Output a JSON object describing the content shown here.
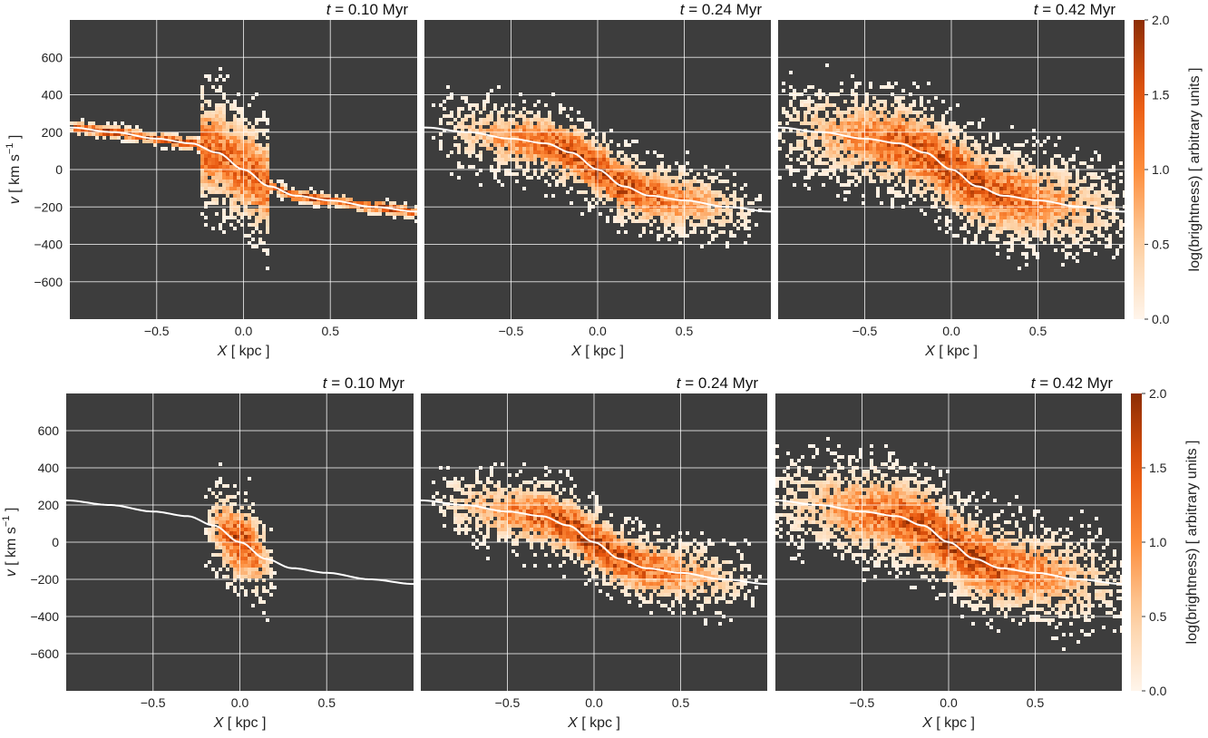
{
  "chart_data": {
    "type": "heatmap",
    "description_units": {
      "x": "kpc",
      "y": "km s^-1"
    },
    "xlim": [
      -1.0,
      1.0
    ],
    "ylim": [
      -800,
      800
    ],
    "x_ticks": [
      -0.5,
      0.0,
      0.5
    ],
    "y_ticks": [
      -600,
      -400,
      -200,
      0,
      200,
      400,
      600
    ],
    "x_tick_labels": [
      "−0.5",
      "0.0",
      "0.5"
    ],
    "y_tick_labels": [
      "−600",
      "−400",
      "−200",
      "0",
      "200",
      "400",
      "600"
    ],
    "xlabel_var": "X",
    "xlabel_unit": "[ kpc ]",
    "ylabel_var": "v",
    "ylabel_unit_pre": "[ km s",
    "ylabel_unit_sup": "−1",
    "ylabel_unit_post": " ]",
    "background_color": "#3d3d3d",
    "grid": true,
    "colormap": [
      "#fff5eb",
      "#fdd0a2",
      "#fd8d3c",
      "#e6550d",
      "#8c2d04"
    ],
    "colorbar": {
      "label": "log(brightness) [ arbitrary units ]",
      "range": [
        0.0,
        2.0
      ],
      "ticks": [
        "0.0",
        "0.5",
        "1.0",
        "1.5",
        "2.0"
      ]
    },
    "rotation_curve": {
      "x": [
        -1.0,
        -0.75,
        -0.5,
        -0.3,
        -0.15,
        0.0,
        0.15,
        0.3,
        0.5,
        0.75,
        1.0
      ],
      "v": [
        225,
        200,
        165,
        140,
        90,
        0,
        -90,
        -140,
        -165,
        -200,
        -225
      ]
    },
    "panels": [
      {
        "row": 1,
        "time_label": "t = 0.10 Myr",
        "t_var": "t",
        "t_value": "= 0.10 Myr",
        "spread_x": 0.95,
        "spread_v": 35,
        "core_xlim": [
          -1.0,
          1.0
        ],
        "vertical_spread": 280,
        "vertical_core": [
          -0.25,
          0.15
        ]
      },
      {
        "row": 1,
        "time_label": "t = 0.24 Myr",
        "t_var": "t",
        "t_value": "= 0.24 Myr",
        "spread_x": 0.85,
        "spread_v": 170
      },
      {
        "row": 1,
        "time_label": "t = 0.42 Myr",
        "t_var": "t",
        "t_value": "= 0.42 Myr",
        "spread_x": 0.95,
        "spread_v": 230
      },
      {
        "row": 2,
        "time_label": "t = 0.10 Myr",
        "t_var": "t",
        "t_value": "= 0.10 Myr",
        "spread_x": 0.18,
        "spread_v": 220
      },
      {
        "row": 2,
        "time_label": "t = 0.24 Myr",
        "t_var": "t",
        "t_value": "= 0.24 Myr",
        "spread_x": 0.85,
        "spread_v": 170
      },
      {
        "row": 2,
        "time_label": "t = 0.42 Myr",
        "t_var": "t",
        "t_value": "= 0.42 Myr",
        "spread_x": 0.95,
        "spread_v": 230
      }
    ]
  }
}
